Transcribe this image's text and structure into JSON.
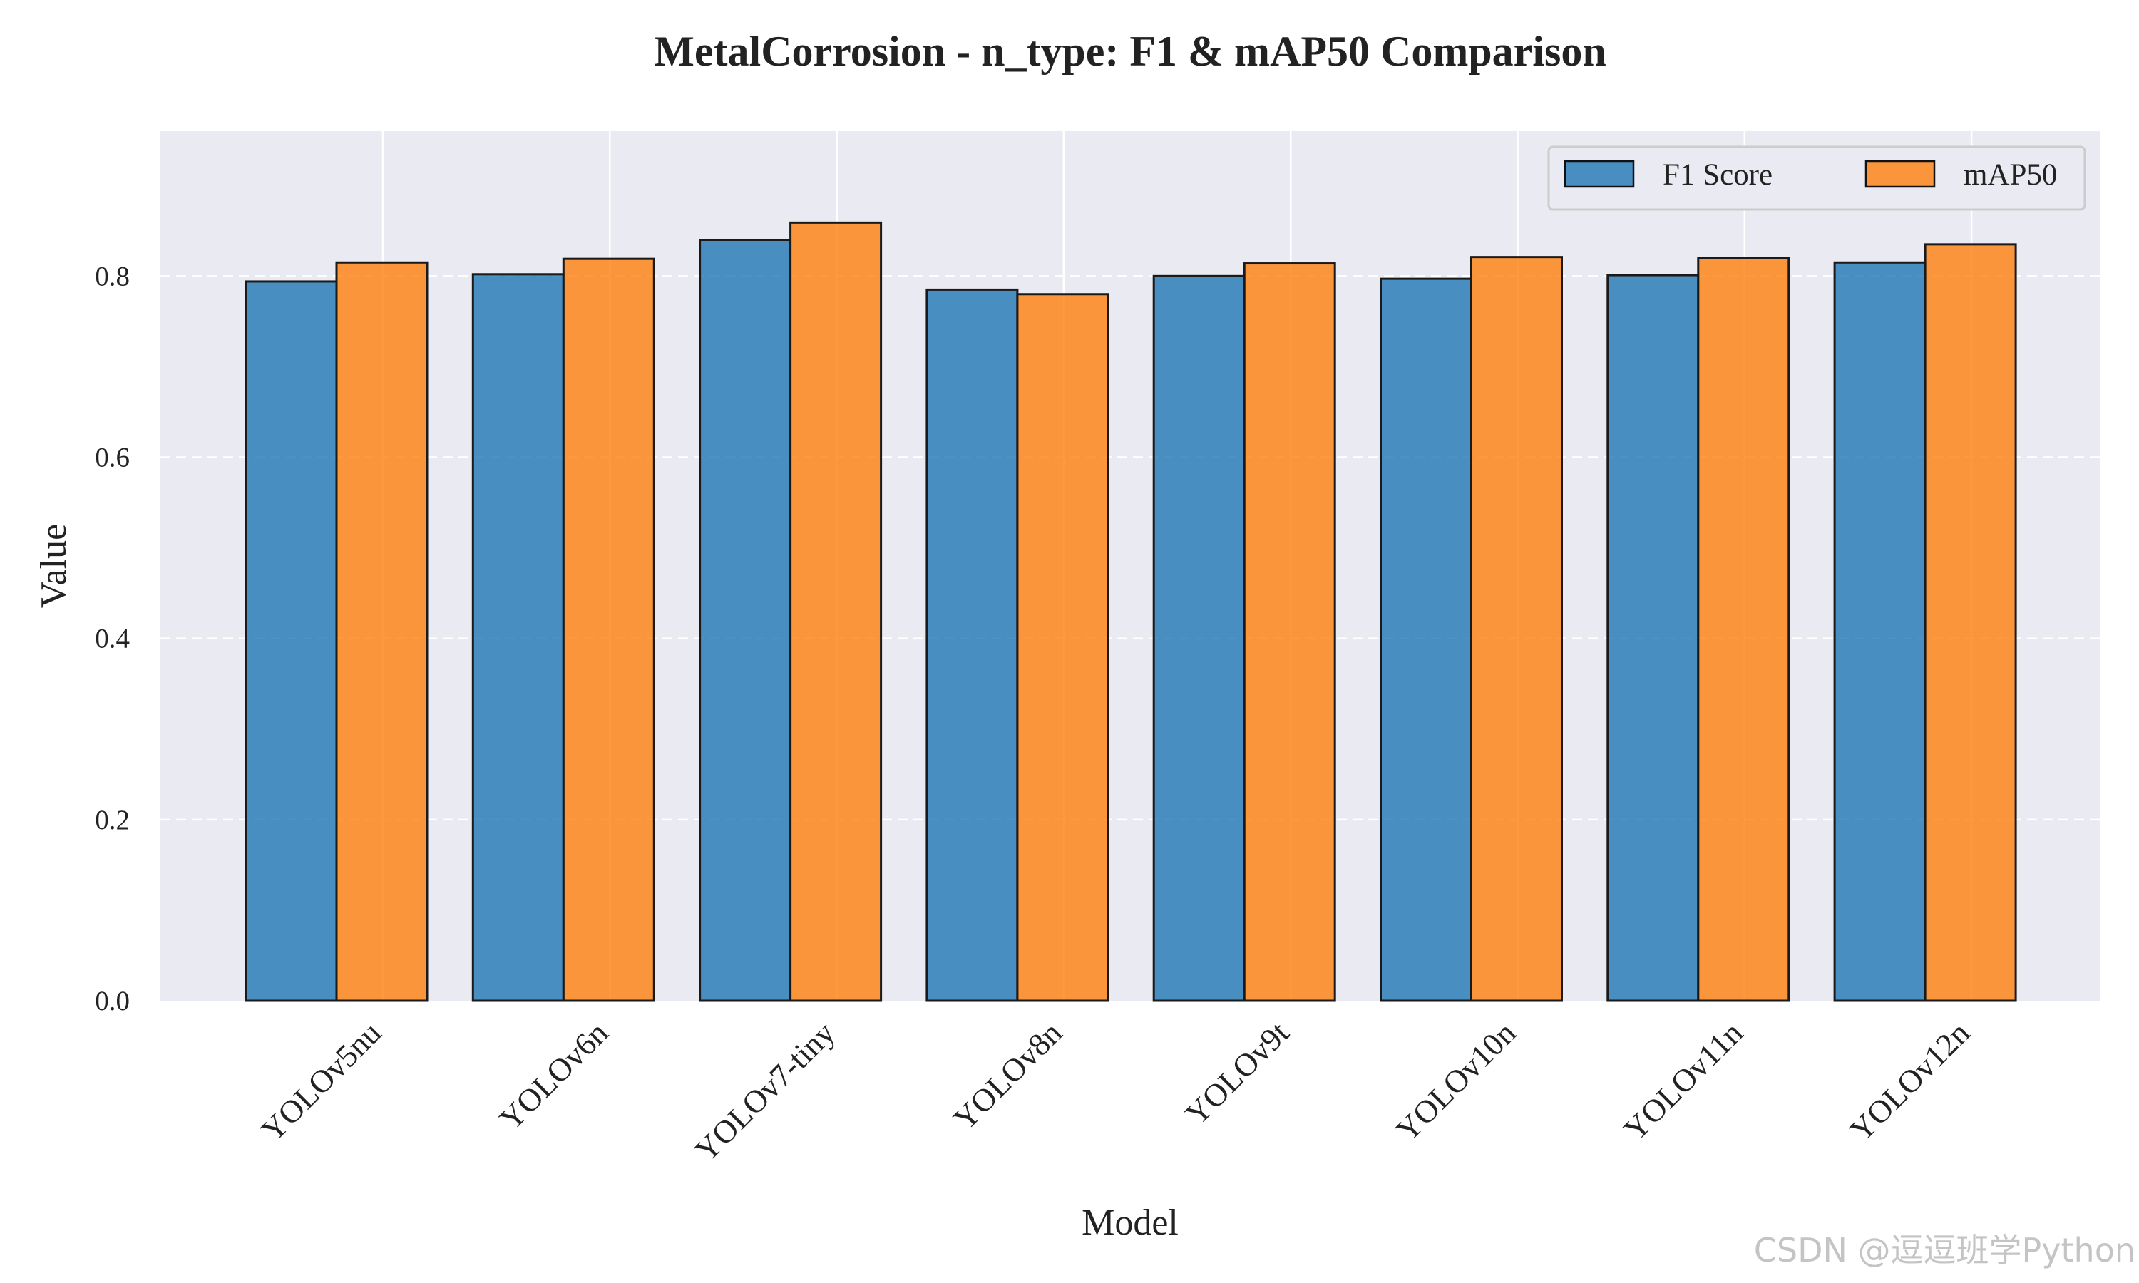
{
  "chart_data": {
    "type": "bar",
    "title": "MetalCorrosion - n_type: F1 & mAP50 Comparison",
    "xlabel": "Model",
    "ylabel": "Value",
    "categories": [
      "YOLOv5nu",
      "YOLOv6n",
      "YOLOv7-tiny",
      "YOLOv8n",
      "YOLOv9t",
      "YOLOv10n",
      "YOLOv11n",
      "YOLOv12n"
    ],
    "series": [
      {
        "name": "F1 Score",
        "color": "#1f77b4",
        "values": [
          0.794,
          0.802,
          0.84,
          0.785,
          0.8,
          0.797,
          0.801,
          0.815
        ]
      },
      {
        "name": "mAP50",
        "color": "#ff7f0e",
        "values": [
          0.815,
          0.819,
          0.859,
          0.78,
          0.814,
          0.821,
          0.82,
          0.835
        ]
      }
    ],
    "ylim": [
      0,
      0.96
    ],
    "yticks": [
      0.0,
      0.2,
      0.4,
      0.6,
      0.8
    ],
    "ytick_labels": [
      "0.0",
      "0.2",
      "0.4",
      "0.6",
      "0.8"
    ],
    "grid": true,
    "legend_position": "top-right",
    "background": "#eaeaf2"
  },
  "watermark": "CSDN @逗逗班学Python"
}
